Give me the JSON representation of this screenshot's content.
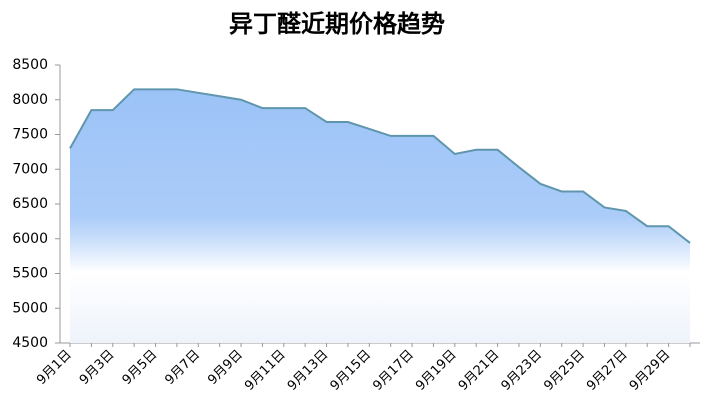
{
  "chart_data": {
    "type": "area",
    "title": "异丁醛近期价格趋势",
    "categories": [
      "9月1日",
      null,
      "9月3日",
      null,
      "9月5日",
      null,
      "9月7日",
      null,
      "9月9日",
      null,
      "9月11日",
      null,
      "9月13日",
      null,
      "9月15日",
      null,
      "9月17日",
      null,
      "9月19日",
      null,
      "9月21日",
      null,
      "9月23日",
      null,
      "9月25日",
      null,
      "9月27日",
      null,
      "9月29日",
      null
    ],
    "values": [
      7300,
      7850,
      7850,
      8150,
      8150,
      8150,
      8100,
      8050,
      8000,
      7880,
      7880,
      7880,
      7680,
      7680,
      7580,
      7480,
      7480,
      7480,
      7220,
      7280,
      7280,
      7030,
      6790,
      6680,
      6680,
      6450,
      6400,
      6180,
      6180,
      5940
    ],
    "color": "#5f96ad",
    "fill": "#9cc3f7",
    "ylim": [
      4500,
      8500
    ],
    "yticks": [
      4500,
      5000,
      5500,
      6000,
      6500,
      7000,
      7500,
      8000,
      8500
    ],
    "grid": false
  }
}
